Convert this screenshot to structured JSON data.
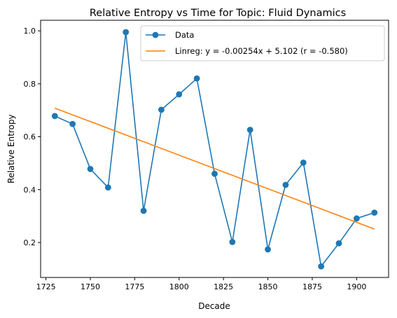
{
  "chart_data": {
    "type": "line",
    "title": "Relative Entropy vs Time for Topic: Fluid Dynamics",
    "xlabel": "Decade",
    "ylabel": "Relative Entropy",
    "xlim": [
      1722,
      1918
    ],
    "ylim": [
      0.068,
      1.04
    ],
    "xticks": [
      1725,
      1750,
      1775,
      1800,
      1825,
      1850,
      1875,
      1900
    ],
    "yticks": [
      0.2,
      0.4,
      0.6,
      0.8,
      1.0
    ],
    "xtick_labels": [
      "1725",
      "1750",
      "1775",
      "1800",
      "1825",
      "1850",
      "1875",
      "1900"
    ],
    "ytick_labels": [
      "0.2",
      "0.4",
      "0.6",
      "0.8",
      "1.0"
    ],
    "grid": false,
    "legend_position": "top-right",
    "series": [
      {
        "name": "Data",
        "color": "#1f77b4",
        "marker": "circle",
        "x": [
          1730,
          1740,
          1750,
          1760,
          1770,
          1780,
          1790,
          1800,
          1810,
          1820,
          1830,
          1840,
          1850,
          1860,
          1870,
          1880,
          1890,
          1900,
          1910
        ],
        "y": [
          0.678,
          0.648,
          0.478,
          0.408,
          0.995,
          0.32,
          0.702,
          0.76,
          0.82,
          0.46,
          0.202,
          0.626,
          0.174,
          0.418,
          0.502,
          0.11,
          0.197,
          0.291,
          0.313
        ]
      },
      {
        "name": "Linreg: y = -0.00254x + 5.102 (r = -0.580)",
        "color": "#ff7f0e",
        "marker": "none",
        "x": [
          1730,
          1910
        ],
        "y": [
          0.708,
          0.251
        ]
      }
    ]
  }
}
